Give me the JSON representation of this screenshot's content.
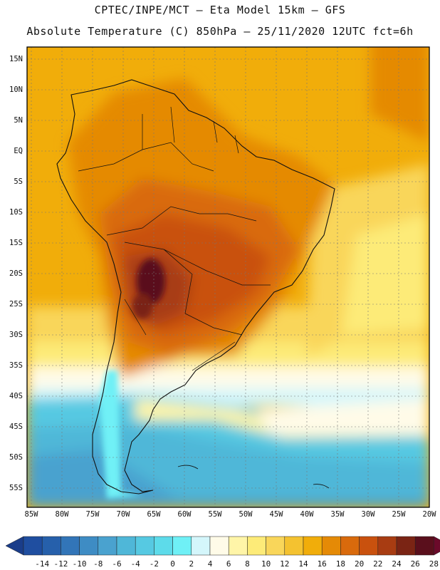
{
  "title": {
    "line1": "CPTEC/INPE/MCT –  Eta Model 15km – GFS",
    "line2": "Absolute Temperature (C) 850hPa – 25/11/2020 12UTC fct=6h"
  },
  "map": {
    "lat_labels": [
      "15N",
      "10N",
      "5N",
      "EQ",
      "5S",
      "10S",
      "15S",
      "20S",
      "25S",
      "30S",
      "35S",
      "40S",
      "45S",
      "50S",
      "55S"
    ],
    "lon_labels": [
      "85W",
      "80W",
      "75W",
      "70W",
      "65W",
      "60W",
      "55W",
      "50W",
      "45W",
      "40W",
      "35W",
      "30W",
      "25W",
      "20W"
    ]
  },
  "colorbar": {
    "labels": [
      "-14",
      "-12",
      "-10",
      "-8",
      "-6",
      "-4",
      "-2",
      "0",
      "2",
      "4",
      "6",
      "8",
      "10",
      "12",
      "14",
      "16",
      "18",
      "20",
      "22",
      "24",
      "26",
      "28"
    ],
    "colors": [
      "#1f4ea0",
      "#2660ab",
      "#3275b8",
      "#3e8cc4",
      "#4aa2cf",
      "#4fb7d8",
      "#56c9e2",
      "#5ddbea",
      "#6ff0f6",
      "#d4f6fb",
      "#fffbe8",
      "#fff5a8",
      "#fdeb78",
      "#f9d65a",
      "#f4c230",
      "#f1ad0a",
      "#e58a06",
      "#d96a0c",
      "#c9510e",
      "#a83c12",
      "#7a2414",
      "#5a0f1c"
    ],
    "under_color": "#1a3d8a",
    "over_color": "#6b0a2a"
  }
}
